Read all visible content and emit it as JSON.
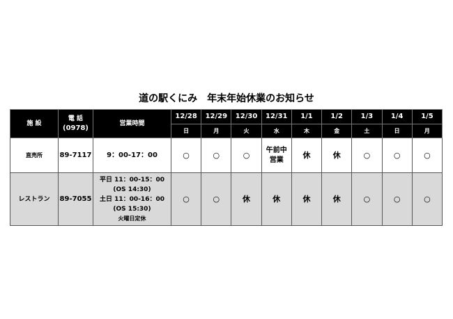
{
  "title": "道の駅くにみ　年末年始休業のお知らせ",
  "headers": {
    "facility": "施 設",
    "phone_label": "電 話",
    "phone_area": "(0978)",
    "hours": "営業時間"
  },
  "dates": [
    {
      "date": "12/28",
      "dow": "日"
    },
    {
      "date": "12/29",
      "dow": "月"
    },
    {
      "date": "12/30",
      "dow": "火"
    },
    {
      "date": "12/31",
      "dow": "水"
    },
    {
      "date": "1/1",
      "dow": "木"
    },
    {
      "date": "1/2",
      "dow": "金"
    },
    {
      "date": "1/3",
      "dow": "土"
    },
    {
      "date": "1/4",
      "dow": "日"
    },
    {
      "date": "1/5",
      "dow": "月"
    }
  ],
  "rows": [
    {
      "facility": "直売所",
      "phone": "89-7117",
      "hours": [
        "9：00-17：00"
      ],
      "status": [
        "○",
        "○",
        "○",
        "午前中\n営業",
        "休",
        "休",
        "○",
        "○",
        "○"
      ]
    },
    {
      "facility": "レストラン",
      "phone": "89-7055",
      "hours": [
        "平日 11：00-15：00",
        "(OS 14:30)",
        "土日 11：00-16：00",
        "(OS 15:30)",
        "火曜日定休"
      ],
      "status": [
        "○",
        "○",
        "休",
        "休",
        "休",
        "休",
        "○",
        "○",
        "○"
      ]
    }
  ]
}
